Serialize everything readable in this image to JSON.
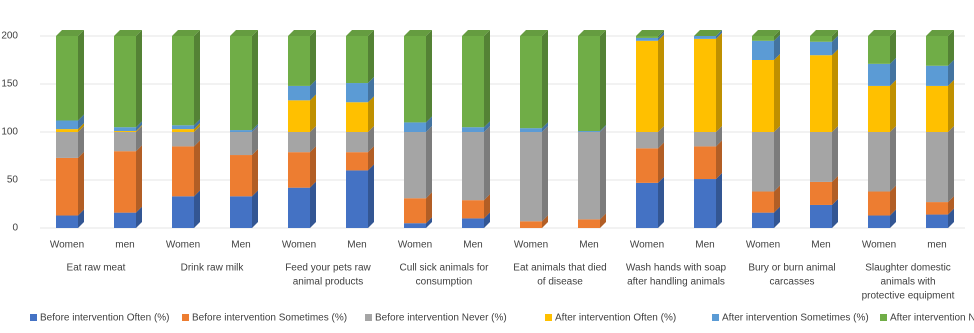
{
  "chart_data": {
    "type": "bar3d_stacked",
    "categories": [
      "Women",
      "men",
      "Women",
      "Men",
      "Women",
      "Men",
      "Women",
      "Men",
      "Women",
      "Men",
      "Women",
      "Men",
      "Women",
      "Men",
      "Women",
      "men"
    ],
    "groups": [
      [
        "Eat raw meat"
      ],
      [
        "Drink raw milk"
      ],
      [
        "Feed your pets raw",
        "animal products"
      ],
      [
        "Cull sick animals for",
        "consumption"
      ],
      [
        "Eat animals that died",
        "of disease"
      ],
      [
        "Wash hands with soap",
        "after handling animals"
      ],
      [
        "Bury or burn animal",
        "carcasses"
      ],
      [
        "Slaughter domestic",
        "animals with",
        "protective equipment"
      ]
    ],
    "series": [
      {
        "name": "Before intervention Often (%)",
        "color": "#4472c4",
        "values": [
          13,
          16,
          33,
          33,
          42,
          60,
          5,
          10,
          0,
          0,
          47,
          51,
          16,
          24,
          13,
          14
        ]
      },
      {
        "name": "Before intervention Sometimes (%)",
        "color": "#ed7d31",
        "values": [
          60,
          64,
          52,
          43,
          37,
          19,
          26,
          19,
          7,
          9,
          36,
          34,
          22,
          24,
          25,
          13
        ]
      },
      {
        "name": "Before intervention Never (%)",
        "color": "#a5a5a5",
        "values": [
          27,
          20,
          15,
          24,
          21,
          21,
          69,
          71,
          93,
          91,
          17,
          15,
          62,
          52,
          62,
          73
        ]
      },
      {
        "name": "After intervention Often (%)",
        "color": "#ffc000",
        "values": [
          3,
          1,
          3,
          0,
          33,
          31,
          0,
          0,
          0,
          0,
          95,
          97,
          75,
          80,
          48,
          48
        ]
      },
      {
        "name": "After intervention Sometimes (%)",
        "color": "#5b9bd5",
        "values": [
          9,
          4,
          4,
          2,
          15,
          20,
          10,
          5,
          4,
          1,
          3,
          3,
          20,
          14,
          23,
          21
        ]
      },
      {
        "name": "After intervention Never (%)",
        "color": "#70ad47",
        "values": [
          88,
          95,
          93,
          98,
          52,
          49,
          90,
          95,
          96,
          99,
          2,
          0,
          5,
          6,
          29,
          31
        ]
      }
    ],
    "ylim": [
      0,
      200
    ],
    "yticks": [
      0,
      50,
      100,
      150,
      200
    ],
    "grid": true,
    "legend": "bottom"
  }
}
